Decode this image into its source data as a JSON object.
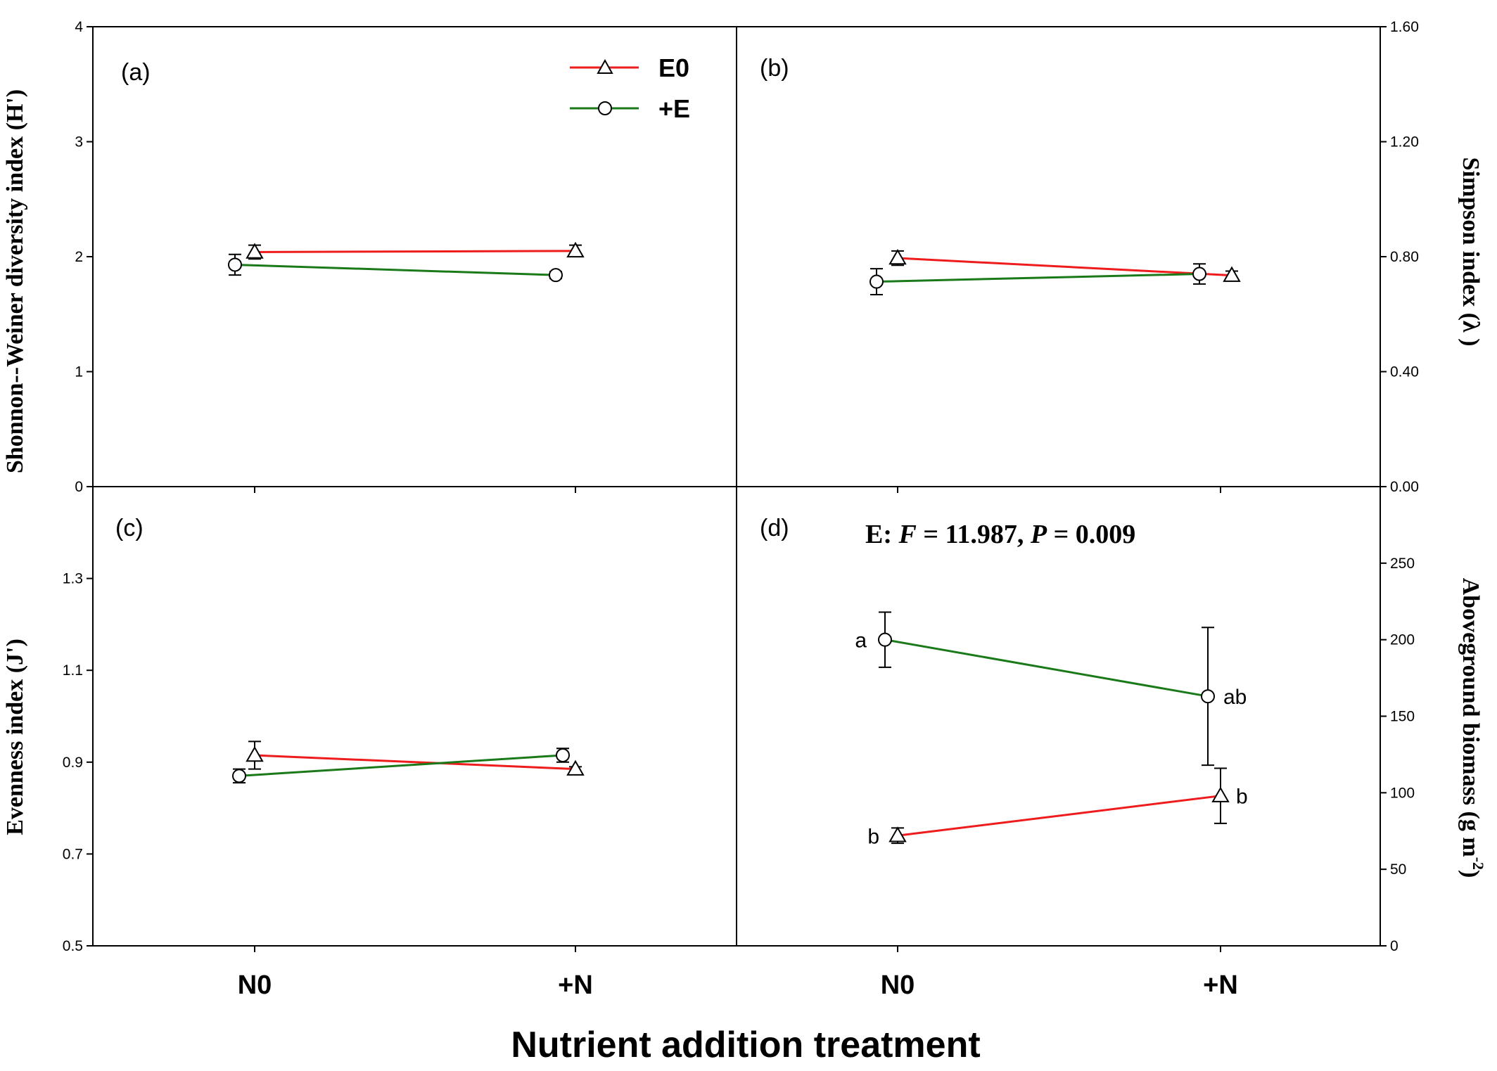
{
  "colors": {
    "E0": "#ee1c1c",
    "+E": "#1a7a1a",
    "axis": "#000000"
  },
  "x_title": "Nutrient addition treatment",
  "chart_data": [
    {
      "panel": "(a)",
      "type": "line",
      "categories": [
        "N0",
        "+N"
      ],
      "ylabel": "Shonnon--Weiner diversity index (H')",
      "ylim": [
        0,
        4
      ],
      "yticks": [
        "0",
        "1",
        "2",
        "3",
        "4"
      ],
      "y_axis_side": "left",
      "series": [
        {
          "name": "E0",
          "marker": "triangle",
          "values": [
            2.04,
            2.05
          ],
          "err": [
            0.06,
            0.05
          ]
        },
        {
          "name": "+E",
          "marker": "circle",
          "values": [
            1.93,
            1.84
          ],
          "err": [
            0.09,
            0.03
          ]
        }
      ],
      "legend": "top-right",
      "annotations": []
    },
    {
      "panel": "(b)",
      "type": "line",
      "categories": [
        "N0",
        "+N"
      ],
      "ylabel": "Simpson index (λ )",
      "ylim": [
        0,
        1.6
      ],
      "yticks": [
        "0.00",
        "0.40",
        "0.80",
        "1.20",
        "1.60"
      ],
      "y_axis_side": "right",
      "series": [
        {
          "name": "E0",
          "marker": "triangle",
          "values": [
            0.795,
            0.735
          ],
          "err": [
            0.025,
            0.015
          ]
        },
        {
          "name": "+E",
          "marker": "circle",
          "values": [
            0.713,
            0.74
          ],
          "err": [
            0.045,
            0.035
          ]
        }
      ],
      "annotations": []
    },
    {
      "panel": "(c)",
      "type": "line",
      "categories": [
        "N0",
        "+N"
      ],
      "ylabel": "Evenness index (J')",
      "ylim": [
        0.5,
        1.5
      ],
      "yticks": [
        "0.5",
        "0.7",
        "0.9",
        "1.1",
        "1.3"
      ],
      "y_axis_side": "left",
      "series": [
        {
          "name": "E0",
          "marker": "triangle",
          "values": [
            0.915,
            0.885
          ],
          "err": [
            0.03,
            0.005
          ]
        },
        {
          "name": "+E",
          "marker": "circle",
          "values": [
            0.87,
            0.915
          ],
          "err": [
            0.015,
            0.015
          ]
        }
      ],
      "annotations": []
    },
    {
      "panel": "(d)",
      "type": "line",
      "categories": [
        "N0",
        "+N"
      ],
      "ylabel": "Aboveground biomass (g m",
      "ylabel_sup": "-2",
      "ylabel_end": ")",
      "ylim": [
        0,
        300
      ],
      "yticks": [
        "0",
        "50",
        "100",
        "150",
        "200",
        "250"
      ],
      "y_axis_side": "right",
      "series": [
        {
          "name": "E0",
          "marker": "triangle",
          "values": [
            72,
            98
          ],
          "err": [
            5,
            18
          ],
          "labels": [
            "b",
            "b"
          ]
        },
        {
          "name": "+E",
          "marker": "circle",
          "values": [
            200,
            163
          ],
          "err": [
            18,
            45
          ],
          "labels": [
            "a",
            "ab"
          ]
        }
      ],
      "stat": {
        "prefix": "E: ",
        "F_sym": "F",
        "F_text": " = 11.987, ",
        "P_sym": "P",
        "P_text": " = 0.009"
      }
    }
  ]
}
